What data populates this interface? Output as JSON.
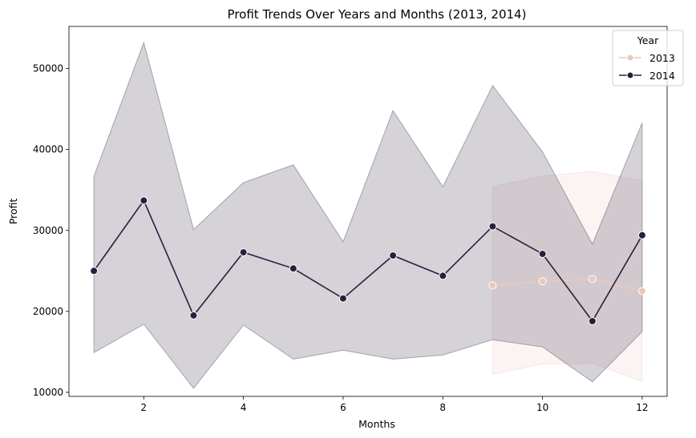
{
  "chart_data": {
    "type": "line",
    "title": "Profit Trends Over Years and Months (2013, 2014)",
    "xlabel": "Months",
    "ylabel": "Profit",
    "xlim": [
      0.5,
      12.5
    ],
    "ylim": [
      9500,
      55200
    ],
    "xticks": [
      2,
      4,
      6,
      8,
      10,
      12
    ],
    "yticks": [
      10000,
      20000,
      30000,
      40000,
      50000
    ],
    "grid": false,
    "legend": {
      "title": "Year",
      "placement": "top-right"
    },
    "series": [
      {
        "name": "2013",
        "color": "#ebc8bc",
        "x": [
          9,
          10,
          11,
          12
        ],
        "y": [
          23200,
          23700,
          24000,
          22500
        ],
        "ci_low": [
          12200,
          13500,
          13600,
          11300
        ],
        "ci_high": [
          35400,
          36700,
          37300,
          36100
        ]
      },
      {
        "name": "2014",
        "color": "#2b1f3e",
        "x": [
          1,
          2,
          3,
          4,
          5,
          6,
          7,
          8,
          9,
          10,
          11,
          12
        ],
        "y": [
          25000,
          33700,
          19500,
          27300,
          25300,
          21600,
          26900,
          24400,
          30500,
          27100,
          18800,
          29400
        ],
        "ci_low": [
          14900,
          18400,
          10500,
          18300,
          14100,
          15200,
          14100,
          14600,
          16500,
          15600,
          11300,
          17500
        ],
        "ci_high": [
          36700,
          53200,
          30100,
          35900,
          38100,
          28600,
          44800,
          35400,
          47900,
          39700,
          28300,
          43300
        ]
      }
    ]
  }
}
